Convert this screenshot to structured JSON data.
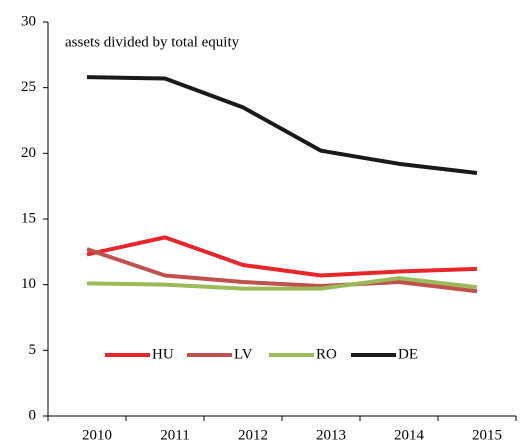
{
  "chart_data": {
    "type": "line",
    "annotation": "assets divided by  total equity",
    "categories": [
      "2010",
      "2011",
      "2012",
      "2013",
      "2014",
      "2015"
    ],
    "series": [
      {
        "name": "HU",
        "color": "#e8262a",
        "values": [
          12.3,
          13.6,
          11.5,
          10.7,
          11.0,
          11.2
        ]
      },
      {
        "name": "LV",
        "color": "#c0504d",
        "values": [
          12.7,
          10.7,
          10.2,
          9.9,
          10.2,
          9.5
        ]
      },
      {
        "name": "RO",
        "color": "#9bbb59",
        "values": [
          10.1,
          10.0,
          9.7,
          9.7,
          10.5,
          9.8
        ]
      },
      {
        "name": "DE",
        "color": "#1a1a1a",
        "values": [
          25.8,
          25.7,
          23.5,
          20.2,
          19.2,
          18.5
        ]
      }
    ],
    "ylim": [
      0,
      30
    ],
    "yticks": [
      0,
      5,
      10,
      15,
      20,
      25,
      30
    ],
    "grid": false,
    "legend": "lower center"
  }
}
